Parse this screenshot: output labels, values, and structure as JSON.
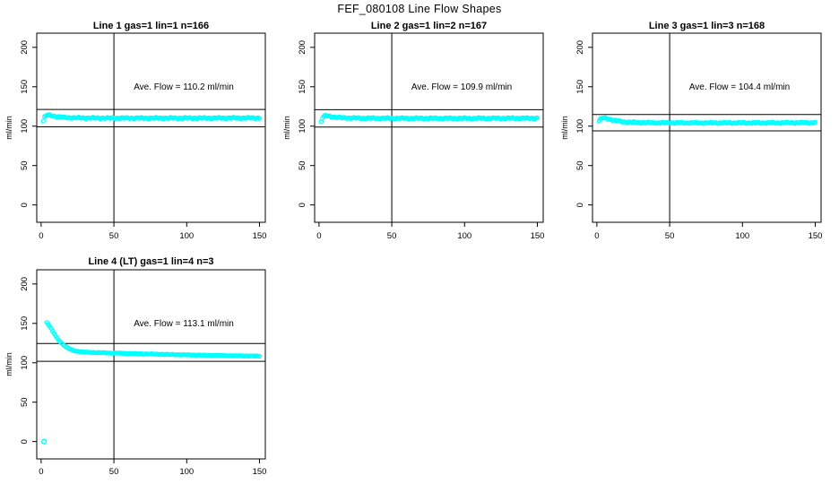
{
  "main_title": "FEF_080108  Line Flow Shapes",
  "chart_data": {
    "type": "scatter",
    "title": "FEF_080108  Line Flow Shapes",
    "point_color": "#00ffff",
    "axis_color": "#000000",
    "background": "#ffffff",
    "axes": {
      "xlabel": "",
      "ylabel": "ml/min",
      "x_ticks": [
        0,
        50,
        100,
        150
      ],
      "y_ticks": [
        0,
        50,
        100,
        150,
        200
      ],
      "xlim": [
        -3,
        154
      ],
      "ylim": [
        -22,
        218
      ],
      "vline_x": 50,
      "grid": false
    },
    "plots": [
      {
        "title": "Line 1 gas=1 lin=1 n=166",
        "avg_flow_label": "Ave. Flow =  110.2  ml/min",
        "avg_flow": 110.2,
        "n": 166,
        "ref_lines": [
          121.2,
          99.2
        ],
        "profile": [
          [
            1.5,
            106.5
          ],
          [
            2.5,
            112
          ],
          [
            4,
            114
          ],
          [
            6,
            114
          ],
          [
            8,
            113
          ],
          [
            11,
            112
          ],
          [
            15,
            111.2
          ],
          [
            20,
            110.7
          ],
          [
            30,
            110.4
          ],
          [
            50,
            110.2
          ],
          [
            100,
            110.2
          ],
          [
            150,
            110.4
          ]
        ],
        "outliers": [],
        "n_points": 166,
        "jitter": 0.9
      },
      {
        "title": "Line 2 gas=1 lin=2 n=167",
        "avg_flow_label": "Ave. Flow =  109.9  ml/min",
        "avg_flow": 109.9,
        "n": 167,
        "ref_lines": [
          120.9,
          98.9
        ],
        "profile": [
          [
            1.5,
            105.5
          ],
          [
            2.5,
            111
          ],
          [
            4,
            113
          ],
          [
            6,
            113
          ],
          [
            8,
            112.2
          ],
          [
            11,
            111.4
          ],
          [
            15,
            110.8
          ],
          [
            20,
            110.4
          ],
          [
            30,
            110.1
          ],
          [
            50,
            110
          ],
          [
            100,
            109.9
          ],
          [
            150,
            110.1
          ]
        ],
        "outliers": [],
        "n_points": 167,
        "jitter": 0.9
      },
      {
        "title": "Line 3 gas=1 lin=3 n=168",
        "avg_flow_label": "Ave. Flow =  104.4  ml/min",
        "avg_flow": 104.4,
        "n": 168,
        "ref_lines": [
          114.8,
          94.0
        ],
        "profile": [
          [
            1.5,
            106.5
          ],
          [
            2.5,
            109
          ],
          [
            4,
            110.2
          ],
          [
            6,
            110
          ],
          [
            9,
            108.8
          ],
          [
            12,
            107.4
          ],
          [
            16,
            106
          ],
          [
            21,
            105.1
          ],
          [
            28,
            104.6
          ],
          [
            40,
            104.3
          ],
          [
            70,
            104.2
          ],
          [
            110,
            104.2
          ],
          [
            150,
            104.4
          ]
        ],
        "outliers": [],
        "n_points": 168,
        "jitter": 0.9
      },
      {
        "title": "Line 4 (LT) gas=1 lin=4 n=3",
        "avg_flow_label": "Ave. Flow =  113.1  ml/min",
        "avg_flow": 113.1,
        "n": 3,
        "ref_lines": [
          124.4,
          101.8
        ],
        "profile": [
          [
            4,
            151
          ],
          [
            5,
            148.5
          ],
          [
            6,
            146
          ],
          [
            7,
            143
          ],
          [
            8,
            140
          ],
          [
            9,
            137
          ],
          [
            10,
            134
          ],
          [
            11,
            131.5
          ],
          [
            12,
            129
          ],
          [
            13,
            127
          ],
          [
            14,
            125
          ],
          [
            15,
            123.3
          ],
          [
            16,
            121.8
          ],
          [
            17,
            120.4
          ],
          [
            18,
            119.2
          ],
          [
            19,
            118.1
          ],
          [
            20,
            117.1
          ],
          [
            22,
            115.8
          ],
          [
            24,
            114.9
          ],
          [
            26,
            114.3
          ],
          [
            28,
            113.9
          ],
          [
            30,
            113.6
          ],
          [
            34,
            113.2
          ],
          [
            40,
            112.8
          ],
          [
            48,
            112.4
          ],
          [
            58,
            111.9
          ],
          [
            70,
            111.3
          ],
          [
            82,
            110.8
          ],
          [
            95,
            110.2
          ],
          [
            108,
            109.7
          ],
          [
            120,
            109.3
          ],
          [
            132,
            108.9
          ],
          [
            142,
            108.6
          ],
          [
            150,
            108.4
          ]
        ],
        "outliers": [
          [
            2,
            0
          ]
        ],
        "n_points": 150,
        "jitter": 0.35
      }
    ]
  }
}
